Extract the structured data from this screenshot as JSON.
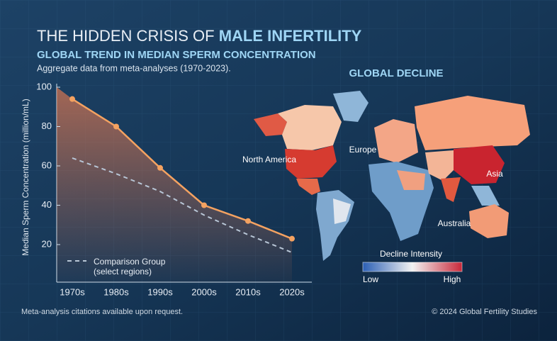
{
  "title_part1": "THE HIDDEN CRISIS OF",
  "title_part2": "MALE INFERTILITY",
  "subtitle": "GLOBAL TREND IN MEDIAN SPERM CONCENTRATION",
  "note": "Aggregate data from meta-analyses (1970-2023).",
  "chart_data": {
    "type": "line",
    "y_label": "Median Sperm Concentration (million/mL)",
    "categories": [
      "1970s",
      "1980s",
      "1990s",
      "2000s",
      "2010s",
      "2020s"
    ],
    "series": [
      {
        "color": "#f4a261",
        "values": [
          94,
          80,
          59,
          40,
          32,
          23
        ]
      },
      {
        "name": "Comparison Group (select regions)",
        "color": "#b8c6d6",
        "values": [
          64,
          56,
          47,
          35,
          25,
          16
        ]
      }
    ],
    "ylim": [
      0,
      100
    ],
    "yticks": [
      20,
      40,
      60,
      80,
      100
    ],
    "area_fill": true
  },
  "map": {
    "title": "GLOBAL DECLINE",
    "labels": [
      "North America",
      "Europe",
      "Asia",
      "Australia"
    ],
    "legend": {
      "title": "Decline Intensity",
      "low": "Low",
      "high": "High"
    }
  },
  "footer": {
    "left": "Meta-analysis citations available upon request.",
    "right": "© 2024 Global Fertility Studies"
  }
}
